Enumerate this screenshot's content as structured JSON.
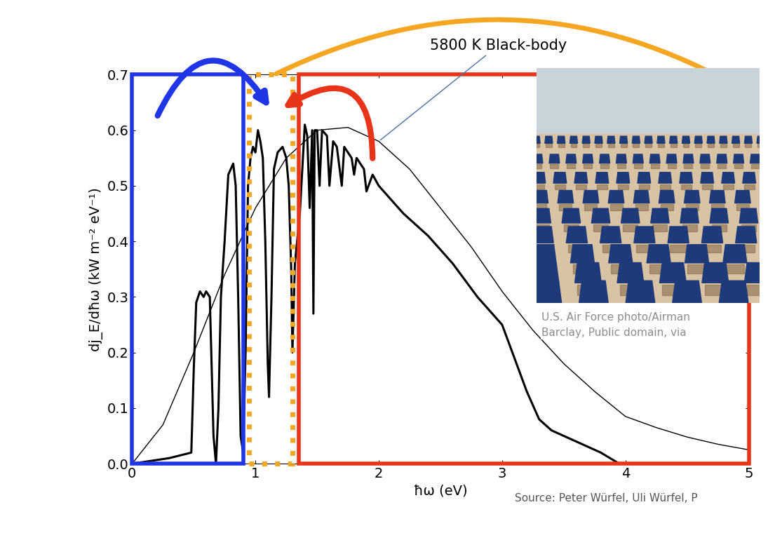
{
  "chart_data": {
    "type": "line",
    "xlabel": "ħω (eV)",
    "ylabel": "dj_E/dħω (kW m⁻² eV⁻¹)",
    "xlim": [
      0,
      5
    ],
    "ylim": [
      0,
      0.7
    ],
    "xticks": [
      0,
      1,
      2,
      3,
      4,
      5
    ],
    "yticks": [
      0.0,
      0.1,
      0.2,
      0.3,
      0.4,
      0.5,
      0.6,
      0.7
    ],
    "series": [
      {
        "color": "#000000",
        "x": [
          0.0,
          0.3,
          0.48,
          0.5,
          0.52,
          0.55,
          0.58,
          0.6,
          0.63,
          0.66,
          0.68,
          0.7,
          0.72,
          0.75,
          0.78,
          0.8,
          0.82,
          0.84,
          0.86,
          0.88,
          0.9,
          0.92,
          0.94,
          0.96,
          0.98,
          1.0,
          1.02,
          1.04,
          1.06,
          1.08,
          1.1,
          1.11,
          1.13,
          1.15,
          1.18,
          1.22,
          1.25,
          1.27,
          1.29,
          1.3,
          1.32,
          1.36,
          1.4,
          1.42,
          1.44,
          1.46,
          1.47,
          1.48,
          1.5,
          1.52,
          1.54,
          1.58,
          1.6,
          1.63,
          1.66,
          1.7,
          1.72,
          1.78,
          1.8,
          1.82,
          1.88,
          1.9,
          1.95,
          2.0,
          2.2,
          2.4,
          2.6,
          2.8,
          3.0,
          3.1,
          3.2,
          3.3,
          3.4,
          3.6,
          3.8,
          3.95
        ],
        "values": [
          0.0,
          0.01,
          0.02,
          0.17,
          0.29,
          0.31,
          0.3,
          0.31,
          0.3,
          0.05,
          0.0,
          0.1,
          0.3,
          0.4,
          0.52,
          0.53,
          0.54,
          0.5,
          0.3,
          0.05,
          0.02,
          0.2,
          0.5,
          0.55,
          0.57,
          0.56,
          0.6,
          0.58,
          0.55,
          0.4,
          0.18,
          0.12,
          0.3,
          0.53,
          0.56,
          0.57,
          0.55,
          0.5,
          0.35,
          0.2,
          0.36,
          0.45,
          0.61,
          0.59,
          0.46,
          0.6,
          0.27,
          0.6,
          0.6,
          0.5,
          0.6,
          0.59,
          0.5,
          0.58,
          0.57,
          0.5,
          0.57,
          0.55,
          0.52,
          0.55,
          0.53,
          0.49,
          0.52,
          0.5,
          0.45,
          0.41,
          0.36,
          0.3,
          0.25,
          0.19,
          0.13,
          0.08,
          0.06,
          0.04,
          0.02,
          0.0
        ]
      },
      {
        "name": "5800 K Black-body",
        "color": "#000000",
        "x": [
          0.0,
          0.25,
          0.5,
          0.75,
          1.0,
          1.25,
          1.5,
          1.75,
          2.0,
          2.25,
          2.5,
          2.75,
          3.0,
          3.25,
          3.5,
          3.75,
          4.0,
          4.25,
          4.5,
          4.75,
          5.0
        ],
        "values": [
          0.0,
          0.07,
          0.2,
          0.34,
          0.46,
          0.55,
          0.6,
          0.605,
          0.58,
          0.53,
          0.46,
          0.39,
          0.31,
          0.24,
          0.18,
          0.13,
          0.085,
          0.065,
          0.048,
          0.035,
          0.025
        ]
      }
    ],
    "regions": [
      {
        "x": [
          0,
          0.9
        ],
        "color": "#1f35e6",
        "line_style": "solid"
      },
      {
        "x": [
          0.95,
          1.3
        ],
        "color": "#f5a623",
        "line_style": "dotted"
      },
      {
        "x": [
          1.35,
          5.0
        ],
        "color": "#e8351a",
        "line_style": "solid"
      }
    ],
    "photo_credit": [
      "U.S. Air Force photo/Airman",
      "Barclay, Public domain, via"
    ],
    "source": "Source: Peter Würfel, Uli Würfel, P"
  }
}
